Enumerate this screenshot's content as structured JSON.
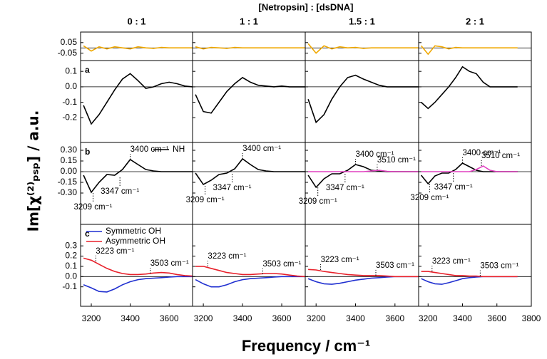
{
  "chart_data": {
    "type": "line",
    "title": "[Netropsin] : [dsDNA]",
    "xlabel": "Frequency / cm⁻¹",
    "ylabel": "Im[χ⁽²⁾ₚₛₚ] / a.u.",
    "x": [
      3160,
      3200,
      3240,
      3280,
      3320,
      3360,
      3400,
      3440,
      3480,
      3520,
      3560,
      3600,
      3640,
      3680,
      3720
    ],
    "columns": [
      {
        "title": "0 : 1",
        "xlim": [
          3145,
          3720
        ],
        "xticks": [
          3200,
          3400,
          3600
        ]
      },
      {
        "title": "1 : 1",
        "xlim": [
          3145,
          3720
        ],
        "xticks": [
          3200,
          3400,
          3600
        ]
      },
      {
        "title": "1.5 : 1",
        "xlim": [
          3145,
          3720
        ],
        "xticks": [
          3200,
          3400,
          3600
        ]
      },
      {
        "title": "2 : 1",
        "xlim": [
          3145,
          3800
        ],
        "xticks": [
          3200,
          3400,
          3600,
          3800
        ]
      }
    ],
    "rows": [
      {
        "ylim": [
          -0.12,
          0.15
        ],
        "yticks": [
          0.05,
          -0.05
        ],
        "panels": [
          {
            "series": [
              {
                "color": "#f0a800",
                "values": [
                  0.02,
                  -0.03,
                  0.01,
                  -0.01,
                  0.01,
                  0,
                  -0.01,
                  0.01,
                  0,
                  -0.005,
                  0.005,
                  0,
                  0,
                  0,
                  0
                ]
              }
            ]
          },
          {
            "series": [
              {
                "color": "#f0a800",
                "values": [
                  0.01,
                  -0.01,
                  0.005,
                  0,
                  -0.005,
                  0.005,
                  0,
                  0,
                  0,
                  0,
                  0,
                  0,
                  0,
                  0,
                  0
                ]
              }
            ]
          },
          {
            "series": [
              {
                "color": "#f0a800",
                "values": [
                  0.04,
                  -0.05,
                  0.02,
                  -0.01,
                  0.01,
                  0,
                  0.005,
                  -0.005,
                  0,
                  0,
                  0,
                  0,
                  0,
                  0,
                  0
                ]
              }
            ]
          },
          {
            "series": [
              {
                "color": "#f0a800",
                "values": [
                  0.02,
                  -0.06,
                  0.02,
                  0.01,
                  -0.01,
                  0.005,
                  0,
                  0,
                  0,
                  0,
                  0,
                  0,
                  0,
                  0,
                  0
                ]
              }
            ]
          }
        ]
      },
      {
        "label": "a",
        "ylim": [
          -0.36,
          0.17
        ],
        "yticks": [
          0.1,
          {
            "value": 0,
            "label": "0.0"
          },
          -0.1,
          -0.2
        ],
        "panels": [
          {
            "series": [
              {
                "color": "#000000",
                "values": [
                  -0.12,
                  -0.24,
                  -0.18,
                  -0.1,
                  -0.02,
                  0.05,
                  0.085,
                  0.04,
                  -0.01,
                  0,
                  0.02,
                  0.03,
                  0.02,
                  0.005,
                  0
                ]
              }
            ]
          },
          {
            "series": [
              {
                "color": "#000000",
                "values": [
                  -0.05,
                  -0.16,
                  -0.17,
                  -0.1,
                  -0.03,
                  0.02,
                  0.06,
                  0.03,
                  0.01,
                  0.005,
                  0,
                  0.005,
                  0,
                  0,
                  0
                ]
              }
            ]
          },
          {
            "series": [
              {
                "color": "#000000",
                "values": [
                  -0.08,
                  -0.23,
                  -0.18,
                  -0.08,
                  0,
                  0.06,
                  0.075,
                  0.05,
                  0.03,
                  0.01,
                  0,
                  0,
                  0,
                  0,
                  0
                ]
              }
            ]
          },
          {
            "series": [
              {
                "color": "#000000",
                "values": [
                  -0.1,
                  -0.14,
                  -0.1,
                  -0.05,
                  0,
                  0.06,
                  0.13,
                  0.1,
                  0.085,
                  0.03,
                  0,
                  0,
                  0,
                  0,
                  0
                ]
              }
            ]
          }
        ]
      },
      {
        "label": "b",
        "legend": "upper right",
        "ylim": [
          -0.74,
          0.41
        ],
        "yticks": [
          {
            "value": 0.3,
            "label": "0.30"
          },
          {
            "value": 0.15,
            "label": "0.15"
          },
          {
            "value": 0,
            "label": "0.00"
          },
          {
            "value": -0.15,
            "label": "-0.15"
          },
          {
            "value": -0.3,
            "label": "-0.30"
          }
        ],
        "panels": [
          {
            "series": [
              {
                "name": "NH",
                "color": "#000000",
                "values": [
                  -0.05,
                  -0.29,
                  -0.15,
                  -0.04,
                  -0.05,
                  0.03,
                  0.17,
                  0.1,
                  0.03,
                  0.01,
                  0,
                  0,
                  0,
                  0,
                  0
                ]
              }
            ],
            "annotations": [
              {
                "text": "3400 cm⁻¹",
                "x": 3400,
                "y": 0.17
              },
              {
                "text": "3347 cm⁻¹",
                "x": 3347,
                "y": -0.08
              },
              {
                "text": "3209 cm⁻¹",
                "x": 3209,
                "y": -0.3
              }
            ]
          },
          {
            "series": [
              {
                "color": "#000000",
                "values": [
                  -0.02,
                  -0.18,
                  -0.12,
                  -0.04,
                  -0.02,
                  0.04,
                  0.18,
                  0.1,
                  0.03,
                  0.01,
                  0,
                  0,
                  0,
                  0,
                  0
                ]
              }
            ],
            "annotations": [
              {
                "text": "3400 cm⁻¹",
                "x": 3400,
                "y": 0.18
              },
              {
                "text": "3347 cm⁻¹",
                "x": 3347,
                "y": -0.03
              },
              {
                "text": "3209 cm⁻¹",
                "x": 3209,
                "y": -0.2
              }
            ]
          },
          {
            "series": [
              {
                "color": "#000000",
                "values": [
                  -0.05,
                  -0.22,
                  -0.1,
                  -0.03,
                  -0.03,
                  0.02,
                  0.1,
                  0.07,
                  0.02,
                  0.01,
                  0,
                  0,
                  0,
                  0,
                  0
                ]
              },
              {
                "color": "#e040c0",
                "values": [
                  0,
                  0,
                  0,
                  0,
                  0,
                  0,
                  0,
                  0,
                  0.01,
                  0.02,
                  0.005,
                  0,
                  0,
                  0,
                  0
                ]
              }
            ],
            "annotations": [
              {
                "text": "3400 cm⁻¹",
                "x": 3400,
                "y": 0.1
              },
              {
                "text": "3510 cm⁻¹",
                "x": 3510,
                "y": 0.02
              },
              {
                "text": "3347 cm⁻¹",
                "x": 3347,
                "y": -0.03
              },
              {
                "text": "3209 cm⁻¹",
                "x": 3209,
                "y": -0.22
              }
            ]
          },
          {
            "series": [
              {
                "color": "#000000",
                "values": [
                  -0.05,
                  -0.17,
                  -0.06,
                  -0.02,
                  -0.02,
                  0.03,
                  0.12,
                  0.07,
                  0.02,
                  0,
                  0,
                  0,
                  0,
                  0,
                  0
                ]
              },
              {
                "color": "#e040c0",
                "values": [
                  0,
                  0,
                  0,
                  0,
                  0,
                  0,
                  0,
                  0,
                  0.03,
                  0.08,
                  0.02,
                  0,
                  0,
                  0,
                  0
                ]
              }
            ],
            "annotations": [
              {
                "text": "3400 cm⁻¹",
                "x": 3400,
                "y": 0.12
              },
              {
                "text": "3510 cm⁻¹",
                "x": 3510,
                "y": 0.08
              },
              {
                "text": "3347 cm⁻¹",
                "x": 3347,
                "y": -0.02
              },
              {
                "text": "3209 cm⁻¹",
                "x": 3209,
                "y": -0.17
              }
            ]
          }
        ]
      },
      {
        "label": "c",
        "legend": "upper left",
        "ylim": [
          -0.29,
          0.51
        ],
        "yticks": [
          0.3,
          0.2,
          0.1,
          {
            "value": 0,
            "label": "0.0"
          },
          -0.1
        ],
        "panels": [
          {
            "series": [
              {
                "name": "Symmetric OH",
                "color": "#1f2fd0",
                "values": [
                  -0.08,
                  -0.11,
                  -0.145,
                  -0.15,
                  -0.12,
                  -0.08,
                  -0.05,
                  -0.03,
                  -0.02,
                  -0.015,
                  -0.01,
                  -0.005,
                  0,
                  0,
                  0
                ]
              },
              {
                "name": "Asymmetric OH",
                "color": "#e8202a",
                "values": [
                  0.18,
                  0.16,
                  0.12,
                  0.08,
                  0.05,
                  0.03,
                  0.02,
                  0.02,
                  0.025,
                  0.035,
                  0.04,
                  0.035,
                  0.02,
                  0.01,
                  0.005
                ]
              }
            ],
            "annotations": [
              {
                "text": "3223 cm⁻¹",
                "x": 3223,
                "y": 0.15
              },
              {
                "text": "3503 cm⁻¹",
                "x": 3503,
                "y": 0.03
              }
            ]
          },
          {
            "series": [
              {
                "color": "#1f2fd0",
                "values": [
                  -0.03,
                  -0.07,
                  -0.1,
                  -0.1,
                  -0.08,
                  -0.05,
                  -0.03,
                  -0.02,
                  -0.015,
                  -0.01,
                  -0.005,
                  0,
                  0,
                  0,
                  0
                ]
              },
              {
                "color": "#e8202a",
                "values": [
                  0.1,
                  0.1,
                  0.08,
                  0.06,
                  0.04,
                  0.03,
                  0.02,
                  0.02,
                  0.025,
                  0.03,
                  0.03,
                  0.025,
                  0.015,
                  0.005,
                  0
                ]
              }
            ],
            "annotations": [
              {
                "text": "3223 cm⁻¹",
                "x": 3223,
                "y": 0.1
              },
              {
                "text": "3503 cm⁻¹",
                "x": 3503,
                "y": 0.025
              }
            ]
          },
          {
            "series": [
              {
                "color": "#1f2fd0",
                "values": [
                  -0.02,
                  -0.05,
                  -0.07,
                  -0.075,
                  -0.065,
                  -0.05,
                  -0.035,
                  -0.025,
                  -0.015,
                  -0.01,
                  -0.005,
                  0,
                  0,
                  0,
                  0
                ]
              },
              {
                "color": "#e8202a",
                "values": [
                  0.07,
                  0.065,
                  0.05,
                  0.04,
                  0.03,
                  0.02,
                  0.015,
                  0.01,
                  0.01,
                  0.01,
                  0.005,
                  0,
                  0,
                  0,
                  0
                ]
              }
            ],
            "annotations": [
              {
                "text": "3223 cm⁻¹",
                "x": 3223,
                "y": 0.065
              },
              {
                "text": "3503 cm⁻¹",
                "x": 3503,
                "y": 0.01
              }
            ]
          },
          {
            "series": [
              {
                "color": "#1f2fd0",
                "values": [
                  -0.02,
                  -0.05,
                  -0.07,
                  -0.075,
                  -0.06,
                  -0.04,
                  -0.02,
                  -0.01,
                  -0.005,
                  0,
                  0,
                  0,
                  0,
                  0,
                  0
                ]
              },
              {
                "color": "#e8202a",
                "values": [
                  0.05,
                  0.05,
                  0.04,
                  0.03,
                  0.02,
                  0.01,
                  0.01,
                  0.005,
                  0.005,
                  0,
                  0,
                  0,
                  0,
                  0,
                  0
                ]
              }
            ],
            "annotations": [
              {
                "text": "3223 cm⁻¹",
                "x": 3223,
                "y": 0.05
              },
              {
                "text": "3503 cm⁻¹",
                "x": 3503,
                "y": 0.005
              }
            ]
          }
        ]
      }
    ]
  }
}
